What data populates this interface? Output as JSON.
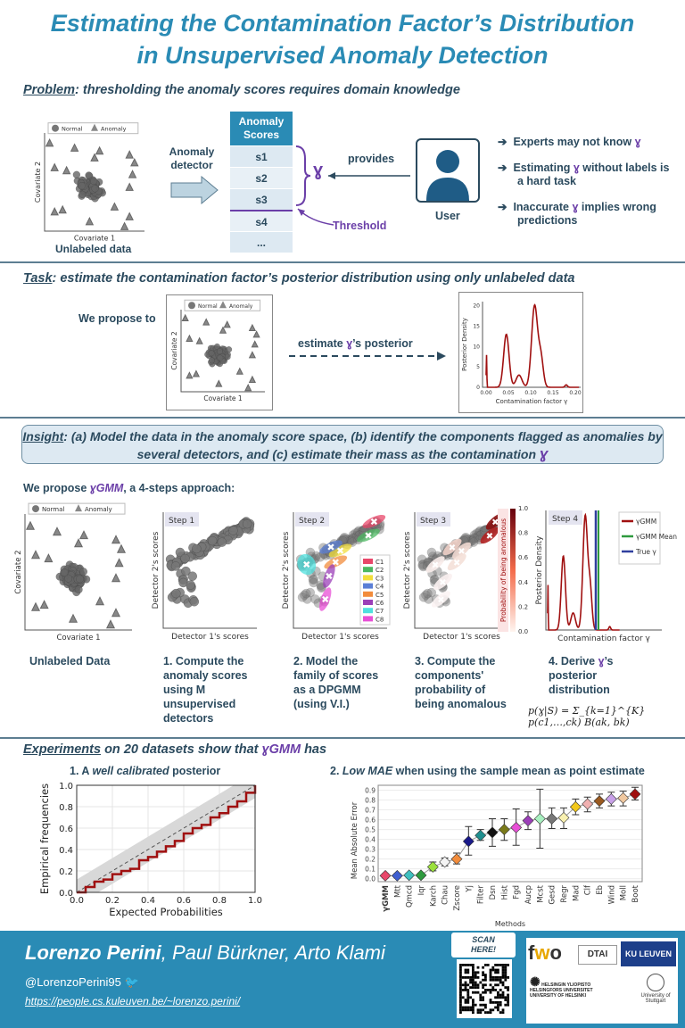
{
  "title": {
    "line1": "Estimating the Contamination Factor’s Distribution",
    "line2": "in Unsupervised Anomaly Detection"
  },
  "problem": {
    "label": "Problem",
    "text": ": thresholding the anomaly scores requires domain knowledge",
    "scatter": {
      "legend_normal": "Normal",
      "legend_anomaly": "Anomaly",
      "xlabel": "Covariate 1",
      "ylabel": "Covariate 2",
      "caption": "Unlabeled data"
    },
    "detector_label": "Anomaly detector",
    "scores_header": "Anomaly Scores",
    "scores": [
      "s1",
      "s2",
      "s3",
      "s4",
      "..."
    ],
    "gamma": "ɣ",
    "threshold": "Threshold",
    "provides": "provides",
    "user": "User",
    "bullets": [
      {
        "pre": "Experts may not know ",
        "gamma": "ɣ",
        "post": ""
      },
      {
        "pre": "Estimating ",
        "gamma": "ɣ",
        "post": " without labels is a hard task"
      },
      {
        "pre": "Inaccurate ",
        "gamma": "ɣ",
        "post": " implies wrong predictions"
      }
    ],
    "arrow_icon": "➔"
  },
  "task": {
    "label": "Task",
    "text": ": estimate the contamination factor’s posterior distribution using only unlabeled data",
    "propose": "We propose to",
    "estimate_pre": "estimate ",
    "estimate_gamma": "ɣ",
    "estimate_post": "’s posterior",
    "scatter": {
      "legend_normal": "Normal",
      "legend_anomaly": "Anomaly",
      "xlabel": "Covariate 1",
      "ylabel": "Covariate 2"
    },
    "posterior": {
      "ylabel": "Posterior Density",
      "xlabel": "Contamination factor γ",
      "xticks": [
        "0.00",
        "0.05",
        "0.10",
        "0.15",
        "0.20"
      ],
      "yticks": [
        "0",
        "5",
        "10",
        "15",
        "20"
      ]
    }
  },
  "insight": {
    "label": "Insight",
    "text": ": (a) Model the data in the anomaly score space, (b) identify the components flagged as anomalies by several detectors, and (c) estimate their mass as the contamination ",
    "gamma": "ɣ"
  },
  "approach": {
    "pre": "We propose ",
    "name": "ɣGMM",
    "post": ", a 4-steps approach:",
    "panels": [
      {
        "legend_normal": "Normal",
        "legend_anomaly": "Anomaly",
        "xlabel": "Covariate 1",
        "ylabel": "Covariate 2",
        "caption": "Unlabeled Data"
      },
      {
        "step": "Step 1",
        "xlabel": "Detector 1's scores",
        "ylabel": "Detector 2's scores",
        "caption": "1. Compute the anomaly scores using M unsupervised detectors"
      },
      {
        "step": "Step 2",
        "xlabel": "Detector 1's scores",
        "ylabel": "Detector 2's scores",
        "caption": "2. Model the family of scores as a DPGMM (using V.I.)",
        "components": [
          "C1",
          "C2",
          "C3",
          "C4",
          "C5",
          "C6",
          "C7",
          "C8"
        ],
        "component_colors": [
          "#e8476a",
          "#4cb861",
          "#f2de3c",
          "#5b7fd6",
          "#f28c3c",
          "#9b3fb8",
          "#4fe0de",
          "#e84fd6"
        ]
      },
      {
        "step": "Step 3",
        "xlabel": "Detector 1's scores",
        "ylabel": "Detector 2's scores",
        "colorbar_label": "Probability of being anomalous",
        "colorbar_ticks": [
          "0.0",
          "0.2",
          "0.4",
          "0.6",
          "0.8",
          "1.0"
        ],
        "caption": "3. Compute the components' probability of being anomalous"
      },
      {
        "step": "Step 4",
        "xlabel": "Contamination factor γ",
        "ylabel": "Posterior Density",
        "legend": [
          "γGMM",
          "γGMM Mean",
          "True γ"
        ],
        "legend_colors": [
          "#a01010",
          "#2e9a3e",
          "#2f3f9e"
        ],
        "caption_pre": "4. Derive ",
        "caption_gamma": "ɣ",
        "caption_post": "’s posterior distribution",
        "formula": "p(ɣ|S) = Σ_{k=1}^{K} p(c1,…,ck) B(ak, bk)"
      }
    ]
  },
  "experiments": {
    "label": "Experiments",
    "text": " on 20 datasets show that ",
    "name": "ɣGMM",
    "post": " has",
    "sub1_pre": "1. A ",
    "sub1_em": "well calibrated",
    "sub1_post": " posterior",
    "sub2_pre": "2. ",
    "sub2_em": "Low MAE",
    "sub2_post": " when using the sample mean as point estimate"
  },
  "chart_data": [
    {
      "type": "line",
      "title": "1. A well calibrated posterior",
      "xlabel": "Expected Probabilities",
      "ylabel": "Empirical frequencies",
      "xlim": [
        0,
        1
      ],
      "ylim": [
        0,
        1
      ],
      "xticks": [
        "0.0",
        "0.2",
        "0.4",
        "0.6",
        "0.8",
        "1.0"
      ],
      "yticks": [
        "0.0",
        "0.2",
        "0.4",
        "0.6",
        "0.8",
        "1.0"
      ],
      "grid": true,
      "x": [
        0,
        0.05,
        0.1,
        0.15,
        0.2,
        0.25,
        0.3,
        0.35,
        0.4,
        0.45,
        0.5,
        0.55,
        0.6,
        0.65,
        0.7,
        0.75,
        0.8,
        0.85,
        0.9,
        0.95,
        1.0
      ],
      "y": [
        0,
        0.05,
        0.1,
        0.12,
        0.17,
        0.2,
        0.22,
        0.3,
        0.33,
        0.38,
        0.43,
        0.48,
        0.55,
        0.6,
        0.63,
        0.7,
        0.74,
        0.8,
        0.85,
        0.93,
        1.0
      ],
      "series_color": "#a01010",
      "reference": "diagonal"
    },
    {
      "type": "scatter",
      "title": "2. Low MAE when using the sample mean as point estimate",
      "xlabel": "Methods",
      "ylabel": "Mean Absolute Error",
      "ylim": [
        -0.03,
        0.95
      ],
      "yticks": [
        "0.0",
        "0.1",
        "0.2",
        "0.3",
        "0.4",
        "0.5",
        "0.6",
        "0.7",
        "0.8",
        "0.9"
      ],
      "grid": true,
      "categories": [
        "γGMM",
        "Mtt",
        "Qmcd",
        "Iqr",
        "Karch",
        "Chau",
        "Zscore",
        "Yj",
        "Filter",
        "Dsn",
        "Hist",
        "Fgd",
        "Aucp",
        "Mcst",
        "Gesd",
        "Regr",
        "Mad",
        "Clf",
        "Eb",
        "Wind",
        "Moll",
        "Boot"
      ],
      "values": [
        0.03,
        0.03,
        0.035,
        0.035,
        0.12,
        0.17,
        0.2,
        0.38,
        0.44,
        0.47,
        0.5,
        0.52,
        0.59,
        0.61,
        0.61,
        0.62,
        0.73,
        0.76,
        0.79,
        0.81,
        0.82,
        0.86
      ],
      "low": [
        0.01,
        0.01,
        0.015,
        0.015,
        0.08,
        0.13,
        0.15,
        0.24,
        0.39,
        0.33,
        0.39,
        0.34,
        0.5,
        0.31,
        0.51,
        0.51,
        0.65,
        0.68,
        0.72,
        0.74,
        0.74,
        0.8
      ],
      "high": [
        0.05,
        0.05,
        0.055,
        0.055,
        0.17,
        0.21,
        0.26,
        0.53,
        0.5,
        0.61,
        0.61,
        0.71,
        0.68,
        0.91,
        0.72,
        0.72,
        0.81,
        0.83,
        0.86,
        0.88,
        0.89,
        0.93
      ],
      "colors": [
        "#e8476a",
        "#3f5fd0",
        "#3fbfbf",
        "#2e9a3e",
        "#9be03c",
        "#f4f4f4",
        "#f28c3c",
        "#1a1a8a",
        "#1f8f8f",
        "#111111",
        "#7a7a1a",
        "#e84fd6",
        "#9b3fb8",
        "#a8f0c0",
        "#777777",
        "#f8f0b0",
        "#f2c81c",
        "#f0b0b0",
        "#9a5a20",
        "#c8a0e8",
        "#f0c8a0",
        "#a01010"
      ]
    }
  ],
  "footer": {
    "authors_first": "Lorenzo Perini",
    "authors_rest": ", Paul Bürkner, Arto Klami",
    "handle": "@LorenzoPerini95",
    "url": "https://people.cs.kuleuven.be/~lorenzo.perini/",
    "scan": "SCAN HERE!",
    "logos": [
      "fwo",
      "DTAI",
      "KU LEUVEN",
      "HELSINGIN YLIOPISTO HELSINGFORS UNIVERSITET UNIVERSITY OF HELSINKI",
      "University of Stuttgart"
    ]
  }
}
